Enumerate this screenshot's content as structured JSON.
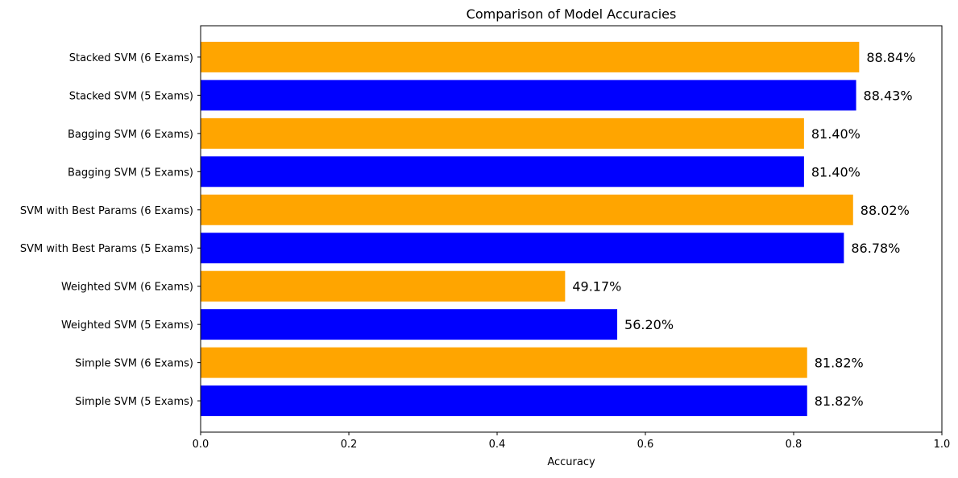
{
  "chart_data": {
    "type": "bar",
    "orientation": "horizontal",
    "title": "Comparison of Model Accuracies",
    "xlabel": "Accuracy",
    "ylabel": "",
    "xlim": [
      0,
      1
    ],
    "xticks": [
      0.0,
      0.2,
      0.4,
      0.6,
      0.8,
      1.0
    ],
    "xtick_labels": [
      "0.0",
      "0.2",
      "0.4",
      "0.6",
      "0.8",
      "1.0"
    ],
    "grid": false,
    "legend": null,
    "categories": [
      "Simple SVM (5 Exams)",
      "Simple SVM (6 Exams)",
      "Weighted SVM (5 Exams)",
      "Weighted SVM (6 Exams)",
      "SVM with Best Params (5 Exams)",
      "SVM with Best Params (6 Exams)",
      "Bagging SVM (5 Exams)",
      "Bagging SVM (6 Exams)",
      "Stacked SVM (5 Exams)",
      "Stacked SVM (6 Exams)"
    ],
    "values": [
      0.8182,
      0.8182,
      0.562,
      0.4917,
      0.8678,
      0.8802,
      0.814,
      0.814,
      0.8843,
      0.8884
    ],
    "data_labels": [
      "81.82%",
      "81.82%",
      "56.20%",
      "49.17%",
      "86.78%",
      "88.02%",
      "81.40%",
      "81.40%",
      "88.43%",
      "88.84%"
    ],
    "colors": [
      "#0000ff",
      "#ffa500",
      "#0000ff",
      "#ffa500",
      "#0000ff",
      "#ffa500",
      "#0000ff",
      "#ffa500",
      "#0000ff",
      "#ffa500"
    ]
  }
}
